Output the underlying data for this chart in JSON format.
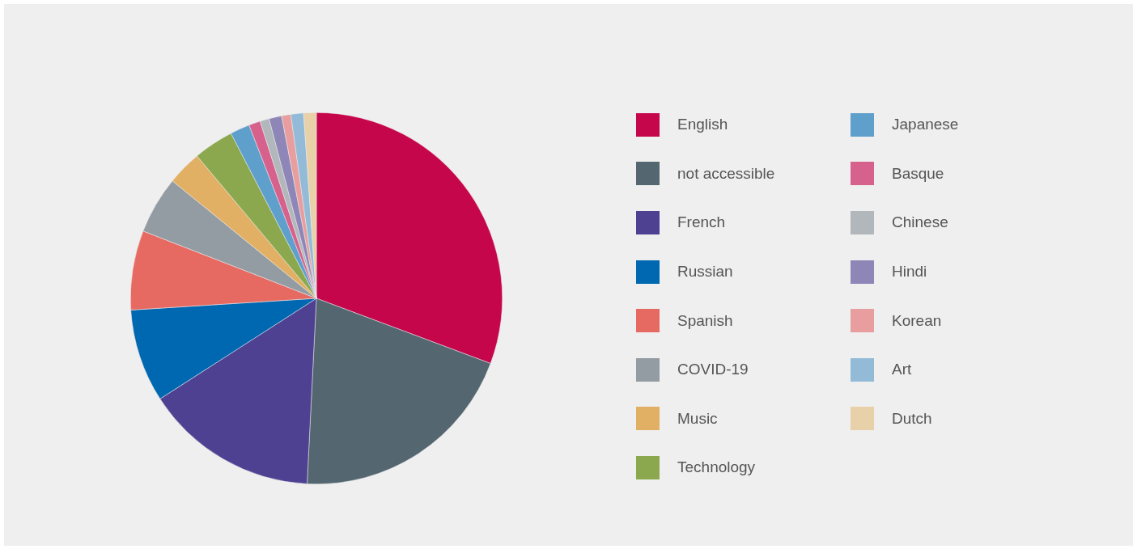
{
  "chart_data": {
    "type": "pie",
    "legend": "right",
    "categories": [
      "English",
      "not accessible",
      "French",
      "Russian",
      "Spanish",
      "COVID-19",
      "Music",
      "Technology",
      "Japanese",
      "Basque",
      "Chinese",
      "Hindi",
      "Korean",
      "Art",
      "Dutch"
    ],
    "values": [
      30.7,
      20.1,
      15.1,
      8.1,
      6.9,
      5.0,
      3.0,
      3.5,
      1.7,
      1.0,
      0.8,
      1.1,
      0.8,
      1.1,
      1.1
    ],
    "colors": [
      "#c6064b",
      "#546670",
      "#4e4192",
      "#0067b1",
      "#e76a62",
      "#949ca3",
      "#e2b064",
      "#8ba84e",
      "#5f9fcb",
      "#d6618c",
      "#b2b7bb",
      "#8f86b8",
      "#e89e9e",
      "#93bbd8",
      "#e8d0a8"
    ]
  }
}
